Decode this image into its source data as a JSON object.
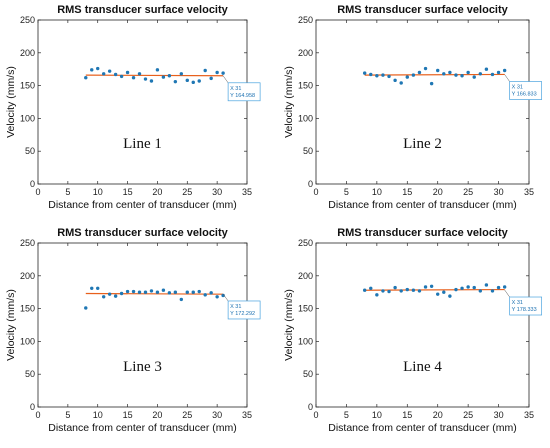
{
  "chart_data": [
    {
      "type": "scatter",
      "title": "RMS transducer surface velocity",
      "xlabel": "Distance from center of transducer (mm)",
      "ylabel": "Velocity (mm/s)",
      "xlim": [
        0,
        35
      ],
      "ylim": [
        0,
        250
      ],
      "xticks": [
        "0",
        "5",
        "10",
        "15",
        "20",
        "25",
        "30",
        "35"
      ],
      "yticks": [
        "0",
        "50",
        "100",
        "150",
        "200",
        "250"
      ],
      "annotation": "Line 1",
      "datatip": {
        "x_label": "X 31",
        "y_label": "Y 164.958",
        "x": 31,
        "y": 164.958
      },
      "fit_line": {
        "x": [
          8,
          31
        ],
        "y": [
          166,
          165
        ]
      },
      "x": [
        8,
        9,
        10,
        11,
        12,
        13,
        14,
        15,
        16,
        17,
        18,
        19,
        20,
        21,
        22,
        23,
        24,
        25,
        26,
        27,
        28,
        29,
        30,
        31
      ],
      "y": [
        162,
        174,
        176,
        168,
        172,
        167,
        164,
        170,
        162,
        168,
        160,
        157,
        174,
        163,
        165,
        156,
        168,
        158,
        155,
        157,
        173,
        161,
        170,
        169
      ],
      "colors": {
        "points": "#1f77b4",
        "fit": "#e8601c"
      }
    },
    {
      "type": "scatter",
      "title": "RMS transducer surface velocity",
      "xlabel": "Distance from center of transducer (mm)",
      "ylabel": "Velocity (mm/s)",
      "xlim": [
        0,
        35
      ],
      "ylim": [
        0,
        250
      ],
      "xticks": [
        "0",
        "5",
        "10",
        "15",
        "20",
        "25",
        "30",
        "35"
      ],
      "yticks": [
        "0",
        "50",
        "100",
        "150",
        "200",
        "250"
      ],
      "annotation": "Line 2",
      "datatip": {
        "x_label": "X 31",
        "y_label": "Y 166.833",
        "x": 31,
        "y": 166.833
      },
      "fit_line": {
        "x": [
          8,
          31
        ],
        "y": [
          166,
          167
        ]
      },
      "x": [
        8,
        9,
        10,
        11,
        12,
        13,
        14,
        15,
        16,
        17,
        18,
        19,
        20,
        21,
        22,
        23,
        24,
        25,
        26,
        27,
        28,
        29,
        30,
        31
      ],
      "y": [
        169,
        167,
        165,
        166,
        164,
        158,
        154,
        163,
        166,
        170,
        176,
        153,
        173,
        168,
        170,
        166,
        165,
        170,
        163,
        168,
        175,
        167,
        170,
        173
      ],
      "colors": {
        "points": "#1f77b4",
        "fit": "#e8601c"
      }
    },
    {
      "type": "scatter",
      "title": "RMS transducer surface velocity",
      "xlabel": "Distance from center of transducer (mm)",
      "ylabel": "Velocity (mm/s)",
      "xlim": [
        0,
        35
      ],
      "ylim": [
        0,
        250
      ],
      "xticks": [
        "0",
        "5",
        "10",
        "15",
        "20",
        "25",
        "30",
        "35"
      ],
      "yticks": [
        "0",
        "50",
        "100",
        "150",
        "200",
        "250"
      ],
      "annotation": "Line 3",
      "datatip": {
        "x_label": "X 31",
        "y_label": "Y 172.292",
        "x": 31,
        "y": 172.292
      },
      "fit_line": {
        "x": [
          8,
          31
        ],
        "y": [
          173,
          172
        ]
      },
      "x": [
        8,
        9,
        10,
        11,
        12,
        13,
        14,
        15,
        16,
        17,
        18,
        19,
        20,
        21,
        22,
        23,
        24,
        25,
        26,
        27,
        28,
        29,
        30,
        31
      ],
      "y": [
        151,
        181,
        181,
        168,
        172,
        169,
        173,
        176,
        176,
        175,
        175,
        177,
        175,
        178,
        174,
        175,
        164,
        175,
        175,
        176,
        171,
        174,
        168,
        170
      ],
      "colors": {
        "points": "#1f77b4",
        "fit": "#e8601c"
      }
    },
    {
      "type": "scatter",
      "title": "RMS transducer surface velocity",
      "xlabel": "Distance from center of transducer (mm)",
      "ylabel": "Velocity (mm/s)",
      "xlim": [
        0,
        35
      ],
      "ylim": [
        0,
        250
      ],
      "xticks": [
        "0",
        "5",
        "10",
        "15",
        "20",
        "25",
        "30",
        "35"
      ],
      "yticks": [
        "0",
        "50",
        "100",
        "150",
        "200",
        "250"
      ],
      "annotation": "Line 4",
      "datatip": {
        "x_label": "X 31",
        "y_label": "Y 178.333",
        "x": 31,
        "y": 178.333
      },
      "fit_line": {
        "x": [
          8,
          31
        ],
        "y": [
          178,
          179
        ]
      },
      "x": [
        8,
        9,
        10,
        11,
        12,
        13,
        14,
        15,
        16,
        17,
        18,
        19,
        20,
        21,
        22,
        23,
        24,
        25,
        26,
        27,
        28,
        29,
        30,
        31
      ],
      "y": [
        178,
        181,
        171,
        177,
        176,
        182,
        177,
        179,
        178,
        177,
        183,
        184,
        172,
        175,
        169,
        179,
        181,
        183,
        182,
        177,
        186,
        177,
        182,
        183
      ],
      "colors": {
        "points": "#1f77b4",
        "fit": "#e8601c"
      }
    }
  ]
}
